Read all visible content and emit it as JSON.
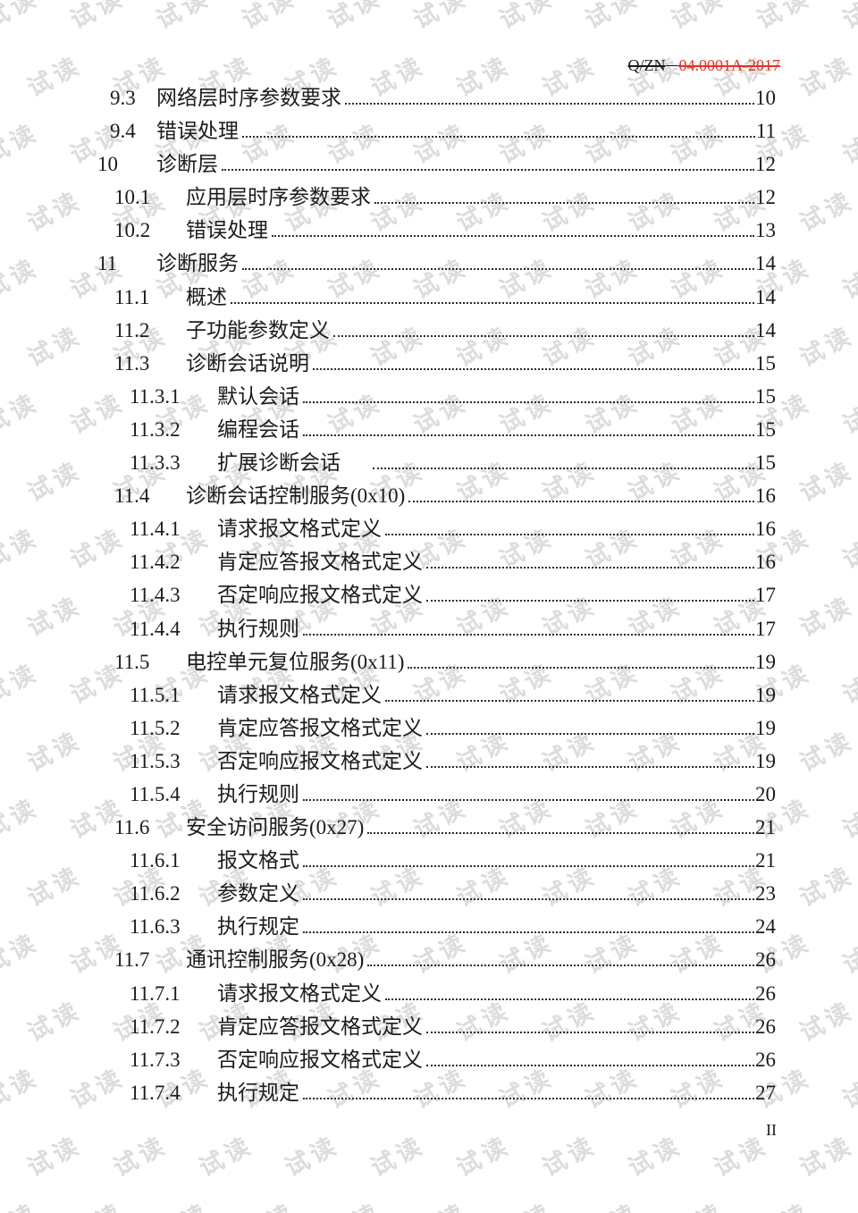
{
  "header": {
    "doc_number_black": "Q/ZN",
    "doc_number_red": "04.0001A-2017",
    "red_color": "#e63226",
    "black_color": "#1a1a1a"
  },
  "watermark": {
    "text": "试读",
    "color": "#dcdcdc"
  },
  "footer": {
    "page_label": "II"
  },
  "toc": {
    "entries": [
      {
        "num": "9.3",
        "title": "网络层时序参数要求",
        "page": "10",
        "level": "2s"
      },
      {
        "num": "9.4",
        "title": "错误处理",
        "page": "11",
        "level": "2s"
      },
      {
        "num": "10",
        "title": "诊断层",
        "page": "12",
        "level": "1"
      },
      {
        "num": "10.1",
        "title": "应用层时序参数要求",
        "page": "12",
        "level": "2"
      },
      {
        "num": "10.2",
        "title": "错误处理",
        "page": "13",
        "level": "2"
      },
      {
        "num": "11",
        "title": "诊断服务",
        "page": "14",
        "level": "1"
      },
      {
        "num": "11.1",
        "title": "概述",
        "page": "14",
        "level": "2"
      },
      {
        "num": "11.2",
        "title": "子功能参数定义",
        "page": "14",
        "level": "2"
      },
      {
        "num": "11.3",
        "title": "诊断会话说明",
        "page": "15",
        "level": "2"
      },
      {
        "num": "11.3.1",
        "title": "默认会话",
        "page": "15",
        "level": "3"
      },
      {
        "num": "11.3.2",
        "title": "编程会话",
        "page": "15",
        "level": "3"
      },
      {
        "num": "11.3.3",
        "title": "扩展诊断会话",
        "page": "15",
        "level": "3",
        "gap_before_leader": true
      },
      {
        "num": "11.4",
        "title": "诊断会话控制服务(0x10)",
        "page": "16",
        "level": "2"
      },
      {
        "num": "11.4.1",
        "title": "请求报文格式定义",
        "page": "16",
        "level": "3"
      },
      {
        "num": "11.4.2",
        "title": "肯定应答报文格式定义",
        "page": "16",
        "level": "3"
      },
      {
        "num": "11.4.3",
        "title": "否定响应报文格式定义",
        "page": "17",
        "level": "3"
      },
      {
        "num": "11.4.4",
        "title": "执行规则",
        "page": "17",
        "level": "3"
      },
      {
        "num": "11.5",
        "title": "电控单元复位服务(0x11)",
        "page": "19",
        "level": "2"
      },
      {
        "num": "11.5.1",
        "title": "请求报文格式定义",
        "page": "19",
        "level": "3"
      },
      {
        "num": "11.5.2",
        "title": "肯定应答报文格式定义",
        "page": "19",
        "level": "3"
      },
      {
        "num": "11.5.3",
        "title": "否定响应报文格式定义",
        "page": "19",
        "level": "3"
      },
      {
        "num": "11.5.4",
        "title": "执行规则",
        "page": "20",
        "level": "3"
      },
      {
        "num": "11.6",
        "title": "安全访问服务(0x27)",
        "page": "21",
        "level": "2"
      },
      {
        "num": "11.6.1",
        "title": "报文格式",
        "page": "21",
        "level": "3"
      },
      {
        "num": "11.6.2",
        "title": "参数定义",
        "page": "23",
        "level": "3"
      },
      {
        "num": "11.6.3",
        "title": "执行规定",
        "page": "24",
        "level": "3"
      },
      {
        "num": "11.7",
        "title": "通讯控制服务(0x28)",
        "page": "26",
        "level": "2"
      },
      {
        "num": "11.7.1",
        "title": "请求报文格式定义",
        "page": "26",
        "level": "3"
      },
      {
        "num": "11.7.2",
        "title": "肯定应答报文格式定义",
        "page": "26",
        "level": "3"
      },
      {
        "num": "11.7.3",
        "title": "否定响应报文格式定义",
        "page": "26",
        "level": "3"
      },
      {
        "num": "11.7.4",
        "title": "执行规定",
        "page": "27",
        "level": "3"
      }
    ]
  }
}
